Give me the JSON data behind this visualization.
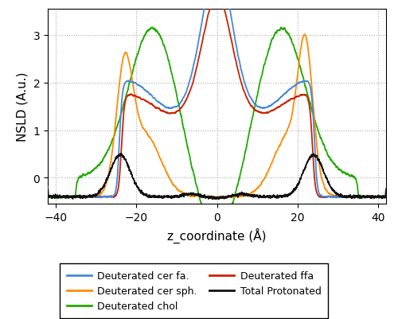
{
  "xlabel": "z_coordinate (Å)",
  "ylabel": "NSLD (A.u.)",
  "xlim": [
    -42,
    42
  ],
  "ylim": [
    -0.55,
    3.55
  ],
  "xticks": [
    -40,
    -20,
    0,
    20,
    40
  ],
  "yticks": [
    0,
    1,
    2,
    3
  ],
  "colors": {
    "blue": "#4488DD",
    "orange": "#FF8C00",
    "green": "#22AA00",
    "red": "#CC2200",
    "black": "#111111"
  },
  "legend": [
    {
      "label": "Deuterated cer fa.",
      "color": "#4488DD"
    },
    {
      "label": "Deuterated cer sph.",
      "color": "#FF8C00"
    },
    {
      "label": "Deuterated chol",
      "color": "#22AA00"
    },
    {
      "label": "Deuterated ffa",
      "color": "#CC2200"
    },
    {
      "label": "Total Protonated",
      "color": "#111111"
    }
  ],
  "background_color": "#ffffff",
  "grid_color": "#aaaaaa",
  "figsize": [
    5.0,
    4.02
  ],
  "dpi": 100
}
